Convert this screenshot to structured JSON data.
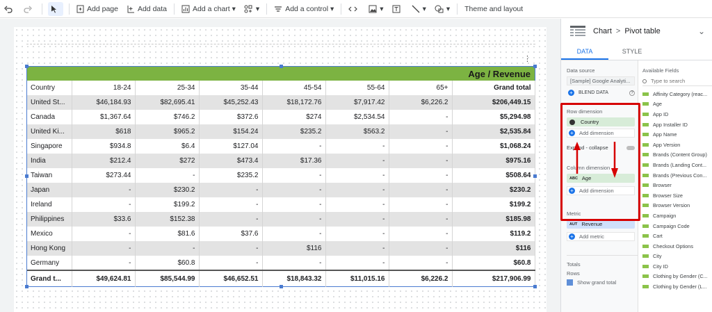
{
  "toolbar": {
    "add_page": "Add page",
    "add_data": "Add data",
    "add_chart": "Add a chart",
    "add_control": "Add a control",
    "theme": "Theme and layout"
  },
  "chart": {
    "banner": "Age / Revenue",
    "headers": [
      "Country",
      "18-24",
      "25-34",
      "35-44",
      "45-54",
      "55-64",
      "65+",
      "Grand total"
    ],
    "rows": [
      [
        "United St...",
        "$46,184.93",
        "$82,695.41",
        "$45,252.43",
        "$18,172.76",
        "$7,917.42",
        "$6,226.2",
        "$206,449.15"
      ],
      [
        "Canada",
        "$1,367.64",
        "$746.2",
        "$372.6",
        "$274",
        "$2,534.54",
        "-",
        "$5,294.98"
      ],
      [
        "United Ki...",
        "$618",
        "$965.2",
        "$154.24",
        "$235.2",
        "$563.2",
        "-",
        "$2,535.84"
      ],
      [
        "Singapore",
        "$934.8",
        "$6.4",
        "$127.04",
        "-",
        "-",
        "-",
        "$1,068.24"
      ],
      [
        "India",
        "$212.4",
        "$272",
        "$473.4",
        "$17.36",
        "-",
        "-",
        "$975.16"
      ],
      [
        "Taiwan",
        "$273.44",
        "-",
        "$235.2",
        "-",
        "-",
        "-",
        "$508.64"
      ],
      [
        "Japan",
        "-",
        "$230.2",
        "-",
        "-",
        "-",
        "-",
        "$230.2"
      ],
      [
        "Ireland",
        "-",
        "$199.2",
        "-",
        "-",
        "-",
        "-",
        "$199.2"
      ],
      [
        "Philippines",
        "$33.6",
        "$152.38",
        "-",
        "-",
        "-",
        "-",
        "$185.98"
      ],
      [
        "Mexico",
        "-",
        "$81.6",
        "$37.6",
        "-",
        "-",
        "-",
        "$119.2"
      ],
      [
        "Hong Kong",
        "-",
        "-",
        "-",
        "$116",
        "-",
        "-",
        "$116"
      ],
      [
        "Germany",
        "-",
        "$60.8",
        "-",
        "-",
        "-",
        "-",
        "$60.8"
      ]
    ],
    "grand": [
      "Grand t...",
      "$49,624.81",
      "$85,544.99",
      "$46,652.51",
      "$18,843.32",
      "$11,015.16",
      "$6,226.2",
      "$217,906.99"
    ]
  },
  "panel": {
    "crumb_chart": "Chart",
    "crumb_sep": ">",
    "crumb_type": "Pivot table",
    "tab_data": "DATA",
    "tab_style": "STYLE",
    "data_source_label": "Data source",
    "data_source": "[Sample] Google Analyti...",
    "blend": "BLEND DATA",
    "row_dim_label": "Row dimension",
    "row_dim": "Country",
    "add_dimension": "Add dimension",
    "expand": "Expand - collapse",
    "col_dim_label": "Column dimension",
    "col_dim": "Age",
    "metric_label": "Metric",
    "metric": "Revenue",
    "add_metric": "Add metric",
    "totals_label": "Totals",
    "rows_label": "Rows",
    "show_grand": "Show grand total",
    "available_label": "Available Fields",
    "search_placeholder": "Type to search",
    "fields": [
      "Affinity Category (reac...",
      "Age",
      "App ID",
      "App Installer ID",
      "App Name",
      "App Version",
      "Brands (Content Group)",
      "Brands (Landing Cont...",
      "Brands (Previous Con...",
      "Browser",
      "Browser Size",
      "Browser Version",
      "Campaign",
      "Campaign Code",
      "Cart",
      "Checkout Options",
      "City",
      "City ID",
      "Clothing by Gender (C...",
      "Clothing by Gender (L..."
    ]
  },
  "colors": {
    "accent": "#1a73e8",
    "banner": "#7cb342",
    "highlight": "#d60000"
  }
}
